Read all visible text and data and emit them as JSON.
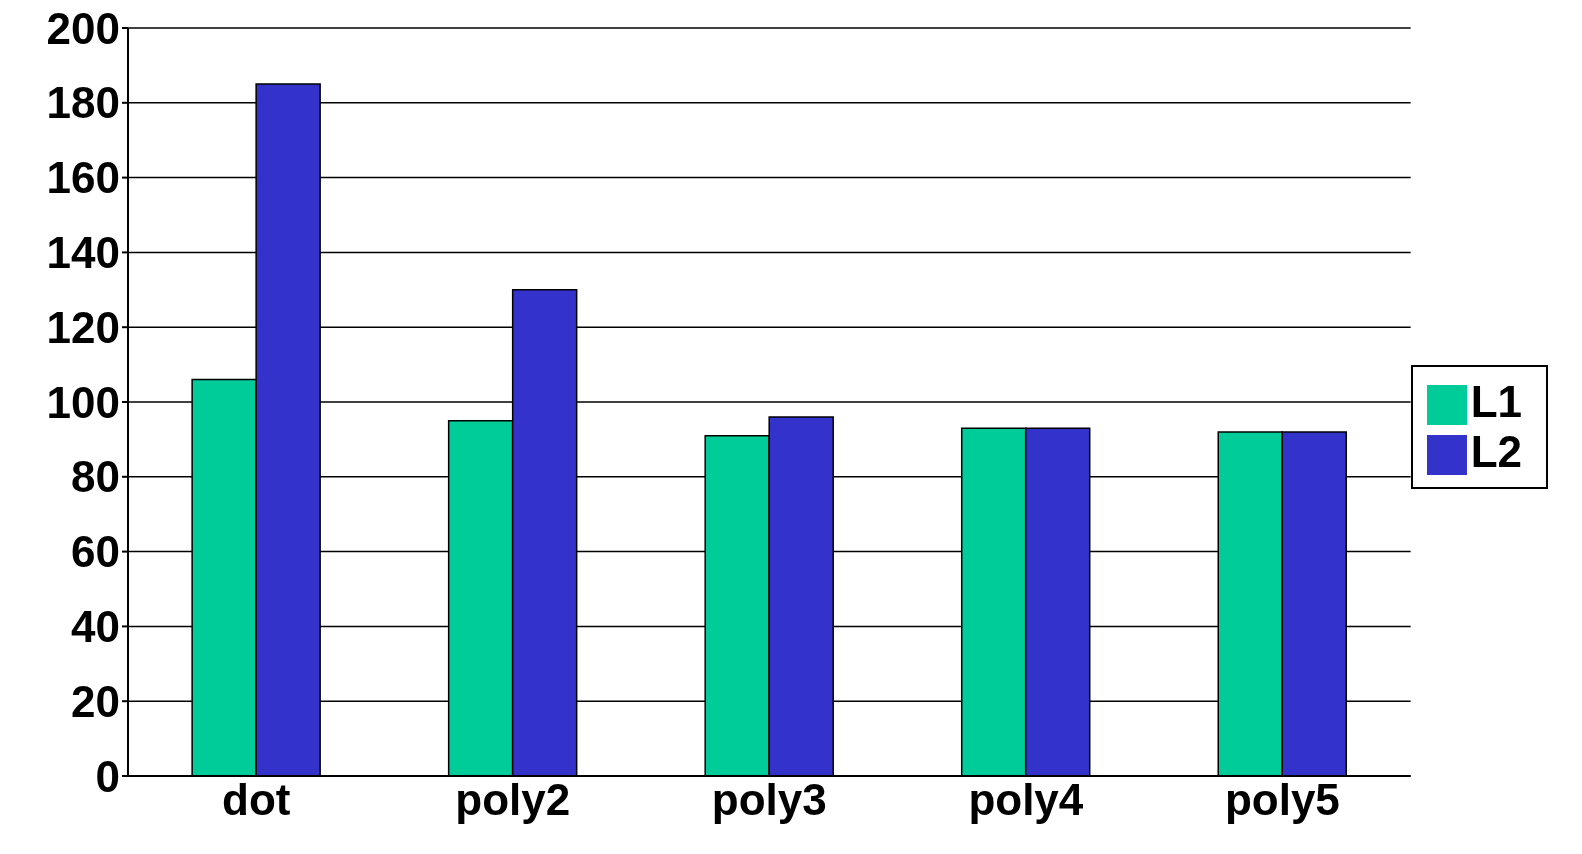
{
  "chart_data": {
    "type": "bar",
    "categories": [
      "dot",
      "poly2",
      "poly3",
      "poly4",
      "poly5"
    ],
    "series": [
      {
        "name": "L1",
        "color": "#00cc99",
        "values": [
          106,
          95,
          91,
          93,
          92
        ]
      },
      {
        "name": "L2",
        "color": "#3333cc",
        "values": [
          185,
          130,
          96,
          93,
          92
        ]
      }
    ],
    "ylim": [
      0,
      200
    ],
    "yticks": [
      0,
      20,
      40,
      60,
      80,
      100,
      120,
      140,
      160,
      180,
      200
    ],
    "grid": "y",
    "legend": "right"
  }
}
